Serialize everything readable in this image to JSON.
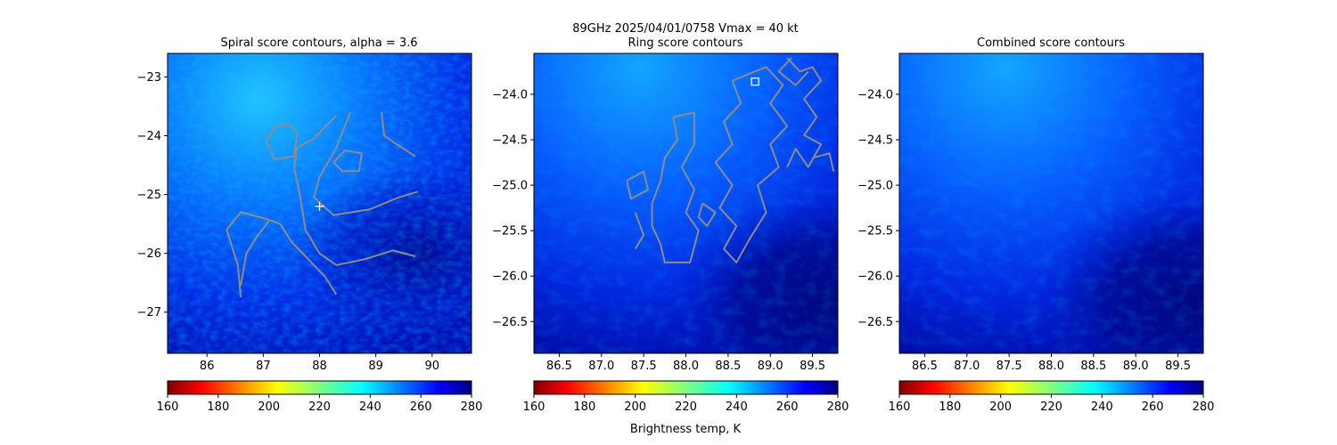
{
  "figure": {
    "suptitle_line1": "89GHz  2025/04/01/0758    Vmax = 40 kt",
    "colorbar_label": "Brightness temp, K"
  },
  "chart_data": [
    {
      "type": "heatmap",
      "title": "Spiral score contours, alpha =  3.6",
      "xlim": [
        85.3,
        90.7
      ],
      "ylim": [
        -27.7,
        -22.6
      ],
      "xticks": [
        "86",
        "87",
        "88",
        "89",
        "90"
      ],
      "yticks": [
        "−23",
        "−24",
        "−25",
        "−26",
        "−27"
      ],
      "xtick_values": [
        86,
        87,
        88,
        89,
        90
      ],
      "ytick_values": [
        -23,
        -24,
        -25,
        -26,
        -27
      ],
      "colorbar": {
        "range": [
          160,
          280
        ],
        "ticks": [
          "160",
          "180",
          "200",
          "220",
          "240",
          "260",
          "280"
        ],
        "tick_values": [
          160,
          180,
          200,
          220,
          240,
          260,
          280
        ],
        "colormap": "jet_r"
      },
      "marker": {
        "shape": "plus",
        "x": 88.0,
        "y": -25.2,
        "color": "#ffffff"
      },
      "contour_color": "#8c8c8c",
      "contours": [
        [
          [
            88.3,
            -23.65
          ],
          [
            87.9,
            -24.05
          ],
          [
            87.6,
            -24.2
          ],
          [
            87.55,
            -24.55
          ],
          [
            87.65,
            -25.0
          ],
          [
            87.75,
            -25.6
          ],
          [
            88.0,
            -26.0
          ],
          [
            88.3,
            -26.2
          ],
          [
            88.8,
            -26.1
          ],
          [
            89.3,
            -25.95
          ],
          [
            89.7,
            -26.05
          ]
        ],
        [
          [
            88.55,
            -23.6
          ],
          [
            88.3,
            -24.2
          ],
          [
            88.0,
            -24.7
          ],
          [
            87.9,
            -25.05
          ],
          [
            88.25,
            -25.35
          ],
          [
            88.9,
            -25.25
          ],
          [
            89.4,
            -25.05
          ],
          [
            89.75,
            -24.95
          ]
        ],
        [
          [
            87.2,
            -23.85
          ],
          [
            87.45,
            -23.8
          ],
          [
            87.6,
            -23.95
          ],
          [
            87.55,
            -24.35
          ],
          [
            87.2,
            -24.4
          ],
          [
            87.05,
            -24.1
          ],
          [
            87.2,
            -23.85
          ]
        ],
        [
          [
            88.45,
            -24.25
          ],
          [
            88.75,
            -24.3
          ],
          [
            88.7,
            -24.6
          ],
          [
            88.4,
            -24.6
          ],
          [
            88.25,
            -24.45
          ],
          [
            88.45,
            -24.25
          ]
        ],
        [
          [
            89.1,
            -23.6
          ],
          [
            89.15,
            -24.0
          ],
          [
            89.3,
            -24.1
          ],
          [
            89.7,
            -24.35
          ]
        ],
        [
          [
            86.6,
            -26.75
          ],
          [
            86.55,
            -26.2
          ],
          [
            86.35,
            -25.6
          ],
          [
            86.6,
            -25.3
          ],
          [
            87.0,
            -25.4
          ],
          [
            87.3,
            -25.5
          ],
          [
            87.5,
            -25.8
          ],
          [
            87.8,
            -26.1
          ],
          [
            88.1,
            -26.4
          ],
          [
            88.3,
            -26.7
          ]
        ],
        [
          [
            86.6,
            -26.55
          ],
          [
            86.7,
            -26.0
          ],
          [
            86.9,
            -25.7
          ],
          [
            87.1,
            -25.45
          ]
        ]
      ]
    },
    {
      "type": "heatmap",
      "title": "Ring score contours",
      "xlim": [
        86.2,
        89.8
      ],
      "ylim": [
        -26.85,
        -23.55
      ],
      "xticks": [
        "86.5",
        "87.0",
        "87.5",
        "88.0",
        "88.5",
        "89.0",
        "89.5"
      ],
      "yticks": [
        "−24.0",
        "−24.5",
        "−25.0",
        "−25.5",
        "−26.0",
        "−26.5"
      ],
      "xtick_values": [
        86.5,
        87.0,
        87.5,
        88.0,
        88.5,
        89.0,
        89.5
      ],
      "ytick_values": [
        -24.0,
        -24.5,
        -25.0,
        -25.5,
        -26.0,
        -26.5
      ],
      "colorbar": {
        "range": [
          160,
          280
        ],
        "ticks": [
          "160",
          "180",
          "200",
          "220",
          "240",
          "260",
          "280"
        ],
        "tick_values": [
          160,
          180,
          200,
          220,
          240,
          260,
          280
        ],
        "colormap": "jet_r"
      },
      "marker": {
        "shape": "square",
        "x": 88.82,
        "y": -23.86,
        "color": "#ffffff"
      },
      "contour_color": "#8c8c8c",
      "contours": [
        [
          [
            88.1,
            -24.2
          ],
          [
            87.85,
            -24.25
          ],
          [
            87.9,
            -24.5
          ],
          [
            87.75,
            -24.7
          ],
          [
            87.7,
            -24.95
          ],
          [
            87.6,
            -25.2
          ],
          [
            87.6,
            -25.45
          ],
          [
            87.7,
            -25.65
          ],
          [
            87.75,
            -25.85
          ],
          [
            88.05,
            -25.85
          ],
          [
            88.15,
            -25.5
          ],
          [
            88.0,
            -25.3
          ],
          [
            88.1,
            -25.05
          ],
          [
            87.95,
            -24.8
          ],
          [
            88.1,
            -24.55
          ],
          [
            88.1,
            -24.2
          ]
        ],
        [
          [
            88.55,
            -23.85
          ],
          [
            88.65,
            -24.1
          ],
          [
            88.45,
            -24.3
          ],
          [
            88.55,
            -24.55
          ],
          [
            88.35,
            -24.75
          ],
          [
            88.55,
            -25.0
          ],
          [
            88.4,
            -25.25
          ],
          [
            88.6,
            -25.45
          ],
          [
            88.45,
            -25.7
          ],
          [
            88.6,
            -25.85
          ],
          [
            88.75,
            -25.6
          ],
          [
            88.95,
            -25.3
          ],
          [
            88.85,
            -25.0
          ],
          [
            89.1,
            -24.8
          ],
          [
            89.0,
            -24.55
          ],
          [
            89.2,
            -24.35
          ],
          [
            89.0,
            -24.1
          ],
          [
            89.15,
            -23.9
          ],
          [
            88.95,
            -23.7
          ],
          [
            88.55,
            -23.85
          ]
        ],
        [
          [
            89.2,
            -23.6
          ],
          [
            89.35,
            -23.75
          ],
          [
            89.5,
            -23.7
          ],
          [
            89.6,
            -23.85
          ],
          [
            89.4,
            -24.05
          ],
          [
            89.55,
            -24.25
          ],
          [
            89.4,
            -24.45
          ],
          [
            89.6,
            -24.55
          ],
          [
            89.45,
            -24.8
          ],
          [
            89.3,
            -24.6
          ],
          [
            89.2,
            -24.8
          ]
        ],
        [
          [
            87.3,
            -24.95
          ],
          [
            87.5,
            -24.85
          ],
          [
            87.55,
            -25.05
          ],
          [
            87.35,
            -25.15
          ],
          [
            87.3,
            -24.95
          ]
        ],
        [
          [
            87.4,
            -25.3
          ],
          [
            87.5,
            -25.55
          ],
          [
            87.4,
            -25.7
          ]
        ],
        [
          [
            88.2,
            -25.2
          ],
          [
            88.35,
            -25.3
          ],
          [
            88.25,
            -25.45
          ],
          [
            88.15,
            -25.35
          ],
          [
            88.2,
            -25.2
          ]
        ],
        [
          [
            89.5,
            -24.7
          ],
          [
            89.7,
            -24.65
          ],
          [
            89.75,
            -24.85
          ]
        ],
        [
          [
            89.25,
            -23.6
          ],
          [
            89.1,
            -23.75
          ],
          [
            89.3,
            -23.9
          ],
          [
            89.45,
            -23.75
          ]
        ]
      ]
    },
    {
      "type": "heatmap",
      "title": "Combined score contours",
      "xlim": [
        86.2,
        89.8
      ],
      "ylim": [
        -26.85,
        -23.55
      ],
      "xticks": [
        "86.5",
        "87.0",
        "87.5",
        "88.0",
        "88.5",
        "89.0",
        "89.5"
      ],
      "yticks": [
        "−24.0",
        "−24.5",
        "−25.0",
        "−25.5",
        "−26.0",
        "−26.5"
      ],
      "xtick_values": [
        86.5,
        87.0,
        87.5,
        88.0,
        88.5,
        89.0,
        89.5
      ],
      "ytick_values": [
        -24.0,
        -24.5,
        -25.0,
        -25.5,
        -26.0,
        -26.5
      ],
      "colorbar": {
        "range": [
          160,
          280
        ],
        "ticks": [
          "160",
          "180",
          "200",
          "220",
          "240",
          "260",
          "280"
        ],
        "tick_values": [
          160,
          180,
          200,
          220,
          240,
          260,
          280
        ],
        "colormap": "jet_r"
      },
      "contour_color": "#8c8c8c",
      "contours": []
    }
  ]
}
